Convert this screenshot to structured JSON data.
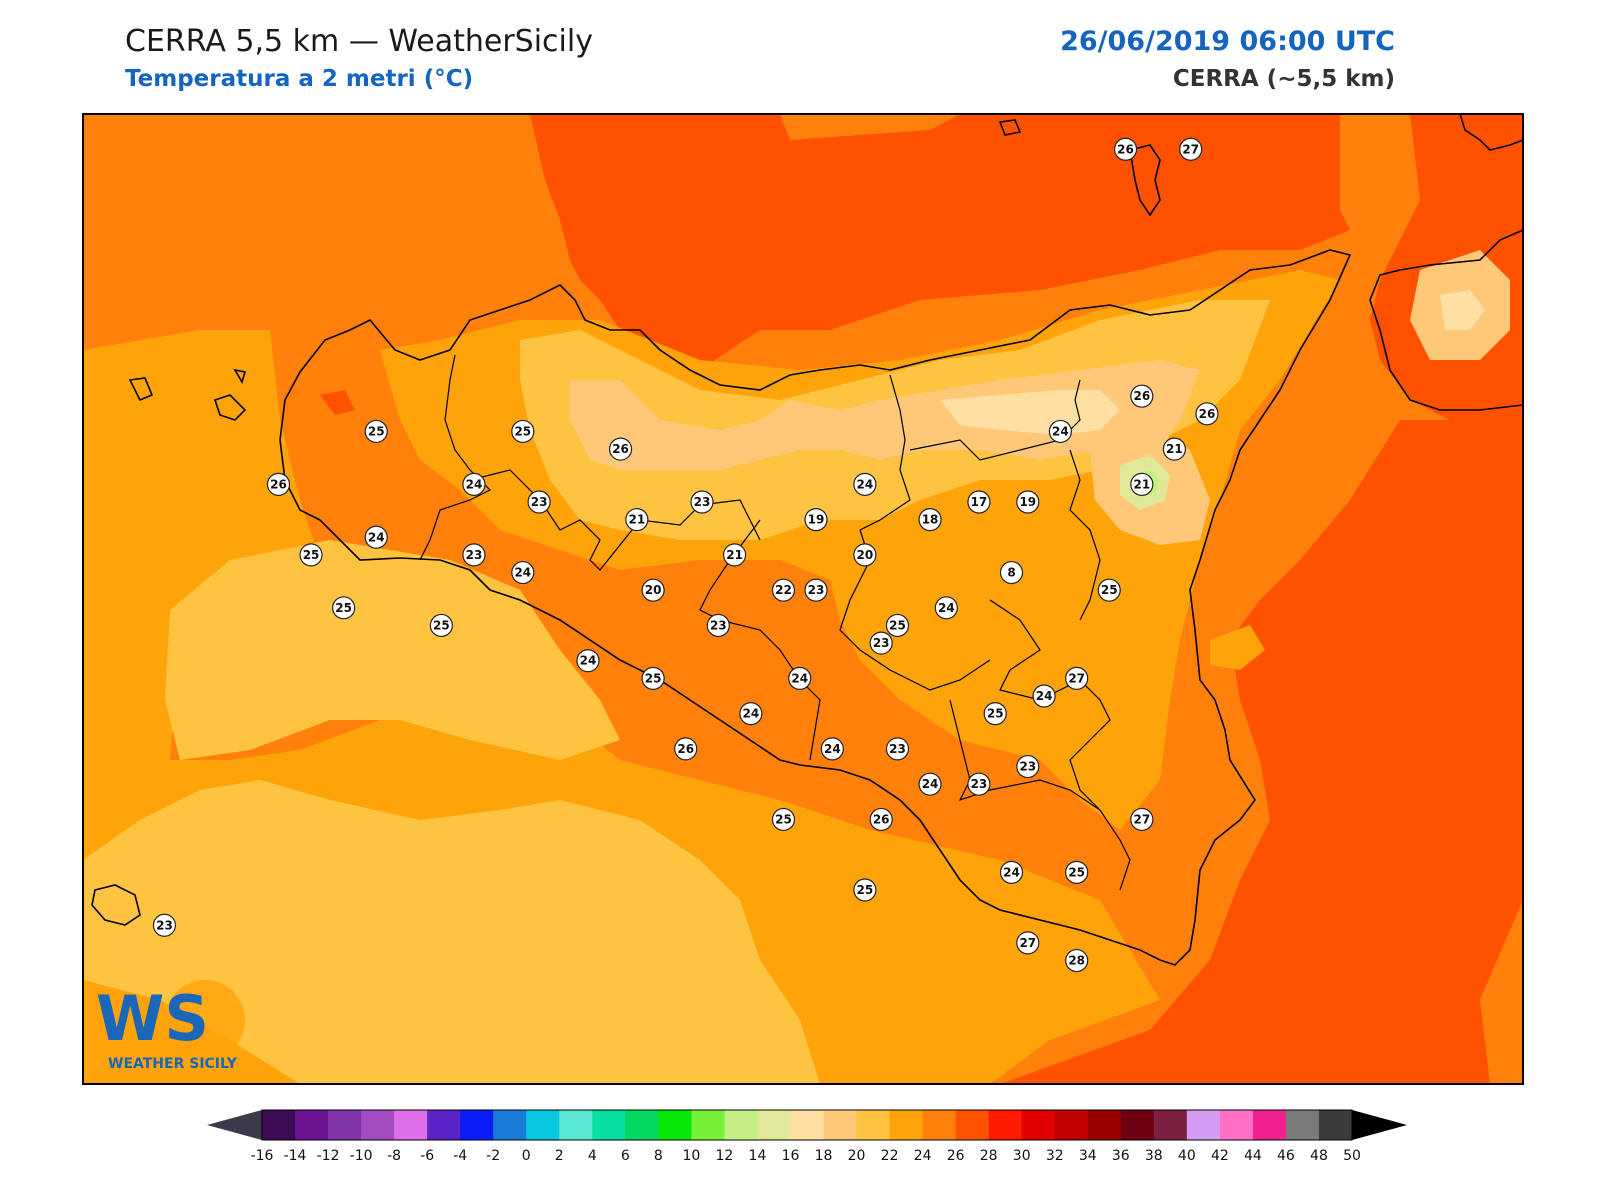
{
  "header": {
    "title": "CERRA 5,5 km — WeatherSicily",
    "subtitle": "Temperatura a 2 metri (°C)",
    "datetime": "26/06/2019 06:00 UTC",
    "model": "CERRA (~5,5 km)"
  },
  "logo": {
    "mark": "WS",
    "name": "WEATHER SICILY"
  },
  "stations": [
    {
      "value": "26",
      "lon": 14.9,
      "lat": 39.0
    },
    {
      "value": "27",
      "lon": 15.1,
      "lat": 39.0
    },
    {
      "value": "25",
      "lon": 12.6,
      "lat": 38.2
    },
    {
      "value": "25",
      "lon": 13.05,
      "lat": 38.2
    },
    {
      "value": "26",
      "lon": 13.35,
      "lat": 38.15
    },
    {
      "value": "26",
      "lon": 12.3,
      "lat": 38.05
    },
    {
      "value": "24",
      "lon": 12.9,
      "lat": 38.05
    },
    {
      "value": "23",
      "lon": 13.1,
      "lat": 38.0
    },
    {
      "value": "21",
      "lon": 13.4,
      "lat": 37.95
    },
    {
      "value": "23",
      "lon": 13.6,
      "lat": 38.0
    },
    {
      "value": "19",
      "lon": 13.95,
      "lat": 37.95
    },
    {
      "value": "24",
      "lon": 14.1,
      "lat": 38.05
    },
    {
      "value": "17",
      "lon": 14.45,
      "lat": 38.0
    },
    {
      "value": "18",
      "lon": 14.3,
      "lat": 37.95
    },
    {
      "value": "19",
      "lon": 14.6,
      "lat": 38.0
    },
    {
      "value": "24",
      "lon": 14.7,
      "lat": 38.2
    },
    {
      "value": "26",
      "lon": 14.95,
      "lat": 38.3
    },
    {
      "value": "26",
      "lon": 15.15,
      "lat": 38.25
    },
    {
      "value": "21",
      "lon": 15.05,
      "lat": 38.15
    },
    {
      "value": "21",
      "lon": 14.95,
      "lat": 38.05
    },
    {
      "value": "24",
      "lon": 12.6,
      "lat": 37.9
    },
    {
      "value": "25",
      "lon": 12.4,
      "lat": 37.85
    },
    {
      "value": "23",
      "lon": 12.9,
      "lat": 37.85
    },
    {
      "value": "24",
      "lon": 13.05,
      "lat": 37.8
    },
    {
      "value": "20",
      "lon": 13.45,
      "lat": 37.75
    },
    {
      "value": "21",
      "lon": 13.7,
      "lat": 37.85
    },
    {
      "value": "20",
      "lon": 14.1,
      "lat": 37.85
    },
    {
      "value": "8",
      "lon": 14.55,
      "lat": 37.8
    },
    {
      "value": "22",
      "lon": 13.85,
      "lat": 37.75
    },
    {
      "value": "23",
      "lon": 13.95,
      "lat": 37.75
    },
    {
      "value": "25",
      "lon": 14.85,
      "lat": 37.75
    },
    {
      "value": "25",
      "lon": 12.5,
      "lat": 37.7
    },
    {
      "value": "25",
      "lon": 12.8,
      "lat": 37.65
    },
    {
      "value": "23",
      "lon": 13.65,
      "lat": 37.65
    },
    {
      "value": "24",
      "lon": 14.35,
      "lat": 37.7
    },
    {
      "value": "25",
      "lon": 14.2,
      "lat": 37.65
    },
    {
      "value": "23",
      "lon": 14.15,
      "lat": 37.6
    },
    {
      "value": "24",
      "lon": 13.25,
      "lat": 37.55
    },
    {
      "value": "25",
      "lon": 13.45,
      "lat": 37.5
    },
    {
      "value": "24",
      "lon": 13.9,
      "lat": 37.5
    },
    {
      "value": "27",
      "lon": 14.75,
      "lat": 37.5
    },
    {
      "value": "24",
      "lon": 14.65,
      "lat": 37.45
    },
    {
      "value": "24",
      "lon": 13.75,
      "lat": 37.4
    },
    {
      "value": "25",
      "lon": 14.5,
      "lat": 37.4
    },
    {
      "value": "26",
      "lon": 13.55,
      "lat": 37.3
    },
    {
      "value": "24",
      "lon": 14.0,
      "lat": 37.3
    },
    {
      "value": "23",
      "lon": 14.2,
      "lat": 37.3
    },
    {
      "value": "23",
      "lon": 14.6,
      "lat": 37.25
    },
    {
      "value": "24",
      "lon": 14.3,
      "lat": 37.2
    },
    {
      "value": "23",
      "lon": 14.45,
      "lat": 37.2
    },
    {
      "value": "25",
      "lon": 13.85,
      "lat": 37.1
    },
    {
      "value": "26",
      "lon": 14.15,
      "lat": 37.1
    },
    {
      "value": "27",
      "lon": 14.95,
      "lat": 37.1
    },
    {
      "value": "24",
      "lon": 14.55,
      "lat": 36.95
    },
    {
      "value": "25",
      "lon": 14.75,
      "lat": 36.95
    },
    {
      "value": "25",
      "lon": 14.1,
      "lat": 36.9
    },
    {
      "value": "27",
      "lon": 14.6,
      "lat": 36.75
    },
    {
      "value": "28",
      "lon": 14.75,
      "lat": 36.7
    },
    {
      "value": "23",
      "lon": 11.95,
      "lat": 36.8
    }
  ],
  "colorbar": {
    "labels": [
      "-16",
      "-14",
      "-12",
      "-10",
      "-8",
      "-6",
      "-4",
      "-2",
      "0",
      "2",
      "4",
      "6",
      "8",
      "10",
      "12",
      "14",
      "16",
      "18",
      "20",
      "22",
      "24",
      "26",
      "28",
      "30",
      "32",
      "34",
      "36",
      "38",
      "40",
      "42",
      "44",
      "46",
      "48",
      "50"
    ],
    "colors": [
      "#3d0a55",
      "#6a1590",
      "#8133a8",
      "#a34cbf",
      "#dd70e8",
      "#5a22c4",
      "#0a1cf7",
      "#1a7ad8",
      "#0ac8e0",
      "#5ae8d0",
      "#05e0a0",
      "#05d860",
      "#05e805",
      "#78f03a",
      "#c4ef85",
      "#e0e89a",
      "#ffe0a2",
      "#ffc878",
      "#ffc342",
      "#ffa30a",
      "#ff800a",
      "#ff5200",
      "#ff1a00",
      "#e00000",
      "#c00000",
      "#9a0000",
      "#6e0010",
      "#7a2040",
      "#d49cf5",
      "#ff70c6",
      "#f0208f",
      "#7a7a7a",
      "#3a3a3a"
    ],
    "under_color": "#3a3a4a",
    "over_color": "#000000"
  }
}
